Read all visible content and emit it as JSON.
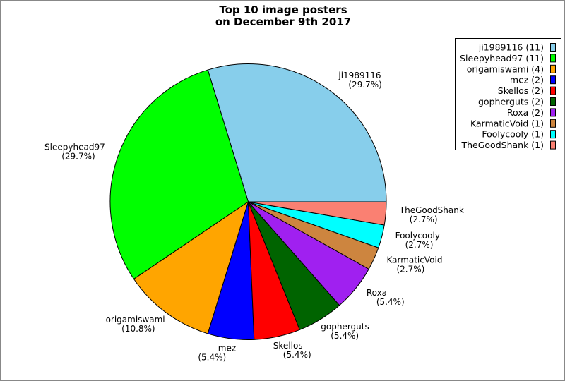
{
  "chart_data": {
    "type": "pie",
    "title": [
      "Top 10 image posters",
      "on December 9th 2017"
    ],
    "categories": [
      "ji1989116",
      "Sleepyhead97",
      "origamiswami",
      "mez",
      "Skellos",
      "gopherguts",
      "Roxa",
      "KarmaticVoid",
      "Foolycooly",
      "TheGoodShank"
    ],
    "values": [
      11,
      11,
      4,
      2,
      2,
      2,
      2,
      1,
      1,
      1
    ],
    "percent_labels": [
      "(29.7%)",
      "(29.7%)",
      "(10.8%)",
      "(5.4%)",
      "(5.4%)",
      "(5.4%)",
      "(5.4%)",
      "(2.7%)",
      "(2.7%)",
      "(2.7%)"
    ],
    "legend_entries": [
      "ji1989116 (11)",
      "Sleepyhead97 (11)",
      "origamiswami (4)",
      "mez (2)",
      "Skellos (2)",
      "gopherguts (2)",
      "Roxa (2)",
      "KarmaticVoid (1)",
      "Foolycooly (1)",
      "TheGoodShank (1)"
    ],
    "colors": [
      "#87ceeb",
      "#00ff00",
      "#ffa500",
      "#0000ff",
      "#ff0000",
      "#006400",
      "#a020f0",
      "#cd853f",
      "#00ffff",
      "#fa8072"
    ],
    "start_angle_deg": 0,
    "direction": "counterclockwise",
    "legend_placement": "top-right"
  }
}
